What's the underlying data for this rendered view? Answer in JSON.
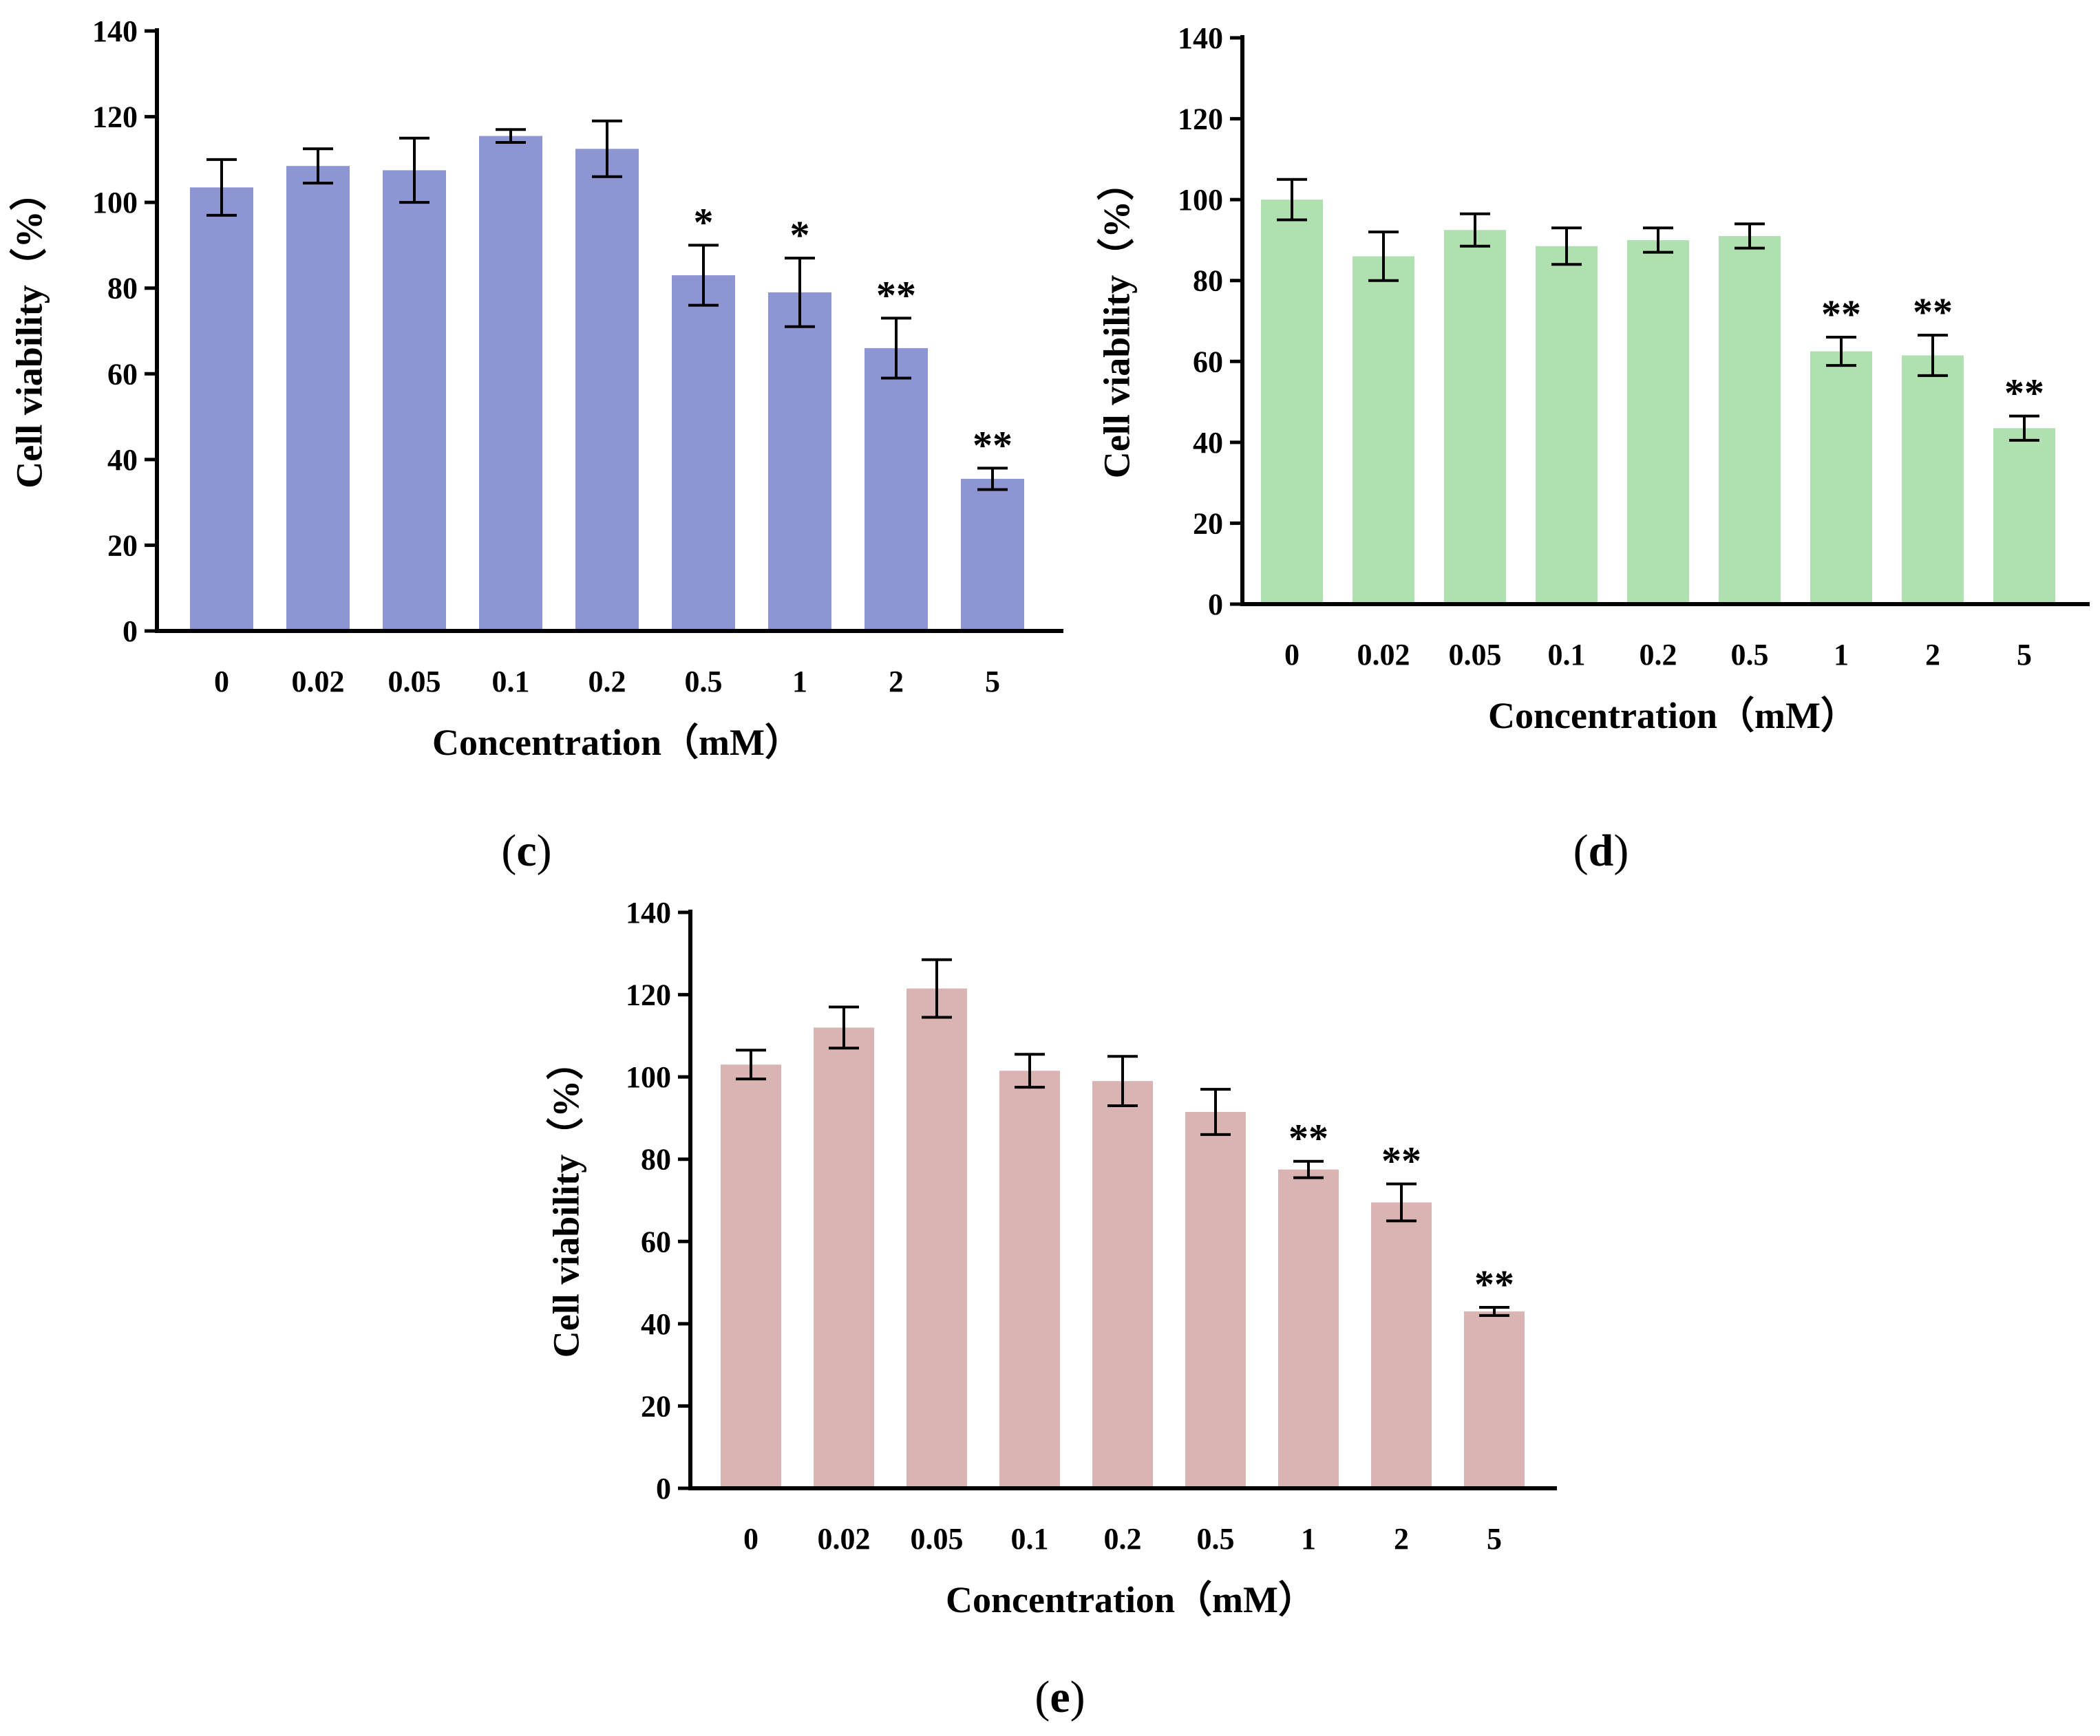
{
  "chart_data": [
    {
      "type": "bar",
      "panel_label": "c",
      "categories": [
        "0",
        "0.02",
        "0.05",
        "0.1",
        "0.2",
        "0.5",
        "1",
        "2",
        "5"
      ],
      "values": [
        103.5,
        108.5,
        107.5,
        115.5,
        112.5,
        83,
        79,
        66,
        35.5
      ],
      "errors": [
        6.5,
        4,
        7.5,
        1.5,
        6.5,
        7,
        8,
        7,
        2.5
      ],
      "significance": [
        "",
        "",
        "",
        "",
        "",
        "*",
        "*",
        "**",
        "**"
      ],
      "xlabel": "Concentration（mM）",
      "ylabel": "Cell viability（%）",
      "ylim": [
        0,
        140
      ],
      "yticks": [
        "0",
        "20",
        "40",
        "60",
        "80",
        "100",
        "120",
        "140"
      ],
      "color": "#8e95d3",
      "grid": false
    },
    {
      "type": "bar",
      "panel_label": "d",
      "categories": [
        "0",
        "0.02",
        "0.05",
        "0.1",
        "0.2",
        "0.5",
        "1",
        "2",
        "5"
      ],
      "values": [
        100,
        86,
        92.5,
        88.5,
        90,
        91,
        62.5,
        61.5,
        43.5
      ],
      "errors": [
        5,
        6,
        4,
        4.5,
        3,
        3,
        3.5,
        5,
        3
      ],
      "significance": [
        "",
        "",
        "",
        "",
        "",
        "",
        "**",
        "**",
        "**"
      ],
      "xlabel": "Concentration（mM）",
      "ylabel": "Cell viability（%）",
      "ylim": [
        0,
        140
      ],
      "yticks": [
        "0",
        "20",
        "40",
        "60",
        "80",
        "100",
        "120",
        "140"
      ],
      "color": "#b0dfb0",
      "grid": false
    },
    {
      "type": "bar",
      "panel_label": "e",
      "categories": [
        "0",
        "0.02",
        "0.05",
        "0.1",
        "0.2",
        "0.5",
        "1",
        "2",
        "5"
      ],
      "values": [
        103,
        112,
        121.5,
        101.5,
        99,
        91.5,
        77.5,
        69.5,
        43
      ],
      "errors": [
        3.5,
        5,
        7,
        4,
        6,
        5.5,
        2,
        4.5,
        1
      ],
      "significance": [
        "",
        "",
        "",
        "",
        "",
        "",
        "**",
        "**",
        "**"
      ],
      "xlabel": "Concentration（mM）",
      "ylabel": "Cell viability（%）",
      "ylim": [
        0,
        140
      ],
      "yticks": [
        "0",
        "20",
        "40",
        "60",
        "80",
        "100",
        "120",
        "140"
      ],
      "color": "#d9b4b3",
      "grid": false
    }
  ]
}
